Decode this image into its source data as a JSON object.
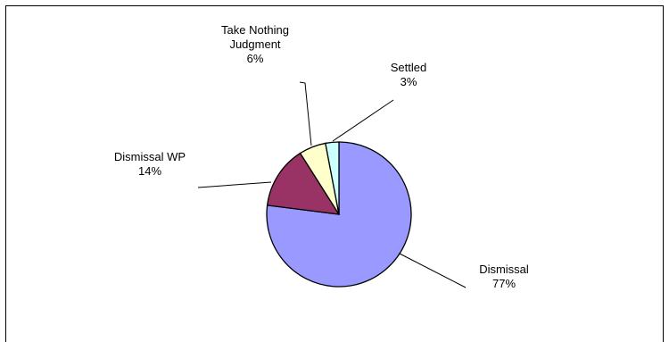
{
  "chart_data": {
    "type": "pie",
    "title": "",
    "slices": [
      {
        "name": "Dismissal",
        "value": 77,
        "label": "77%",
        "color": "#9999ff"
      },
      {
        "name": "Dismissal WP",
        "value": 14,
        "label": "14%",
        "color": "#993366"
      },
      {
        "name": "Take Nothing Judgment",
        "name_lines": [
          "Take Nothing",
          "Judgment"
        ],
        "value": 6,
        "label": "6%",
        "color": "#ffffcc"
      },
      {
        "name": "Settled",
        "value": 3,
        "label": "3%",
        "color": "#ccffff"
      }
    ],
    "start_angle_deg": 0,
    "direction": "clockwise",
    "legend": "none",
    "grid": false
  }
}
